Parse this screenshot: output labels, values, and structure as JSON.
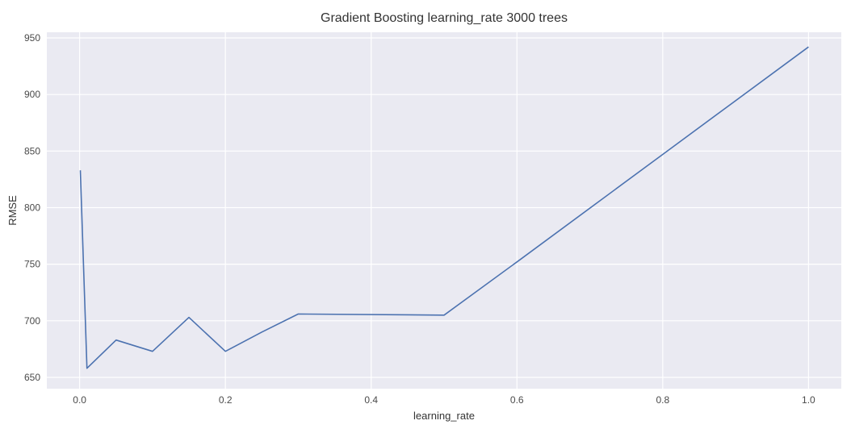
{
  "chart_data": {
    "type": "line",
    "title": "Gradient Boosting learning_rate 3000 trees",
    "xlabel": "learning_rate",
    "ylabel": "RMSE",
    "xlim": [
      -0.045,
      1.045
    ],
    "ylim": [
      640,
      955
    ],
    "xticks": [
      0.0,
      0.2,
      0.4,
      0.6,
      0.8,
      1.0
    ],
    "xtick_labels": [
      "0.0",
      "0.2",
      "0.4",
      "0.6",
      "0.8",
      "1.0"
    ],
    "yticks": [
      650,
      700,
      750,
      800,
      850,
      900,
      950
    ],
    "ytick_labels": [
      "650",
      "700",
      "750",
      "800",
      "850",
      "900",
      "950"
    ],
    "grid": true,
    "legend": "none",
    "colors": {
      "line": "#4c72b0",
      "background": "#eaeaf2",
      "grid": "#ffffff"
    },
    "series": [
      {
        "x": [
          0.001,
          0.01,
          0.05,
          0.075,
          0.1,
          0.15,
          0.2,
          0.25,
          0.3,
          0.5,
          0.6,
          0.8,
          1.0
        ],
        "y": [
          833,
          658,
          683,
          678,
          673,
          703,
          673,
          690,
          706,
          705,
          752,
          847,
          942
        ]
      }
    ]
  }
}
